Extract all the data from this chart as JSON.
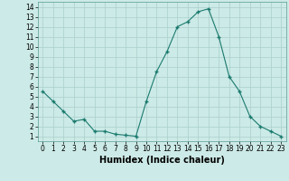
{
  "x": [
    0,
    1,
    2,
    3,
    4,
    5,
    6,
    7,
    8,
    9,
    10,
    11,
    12,
    13,
    14,
    15,
    16,
    17,
    18,
    19,
    20,
    21,
    22,
    23
  ],
  "y": [
    5.5,
    4.5,
    3.5,
    2.5,
    2.7,
    1.5,
    1.5,
    1.2,
    1.1,
    1.0,
    4.5,
    7.5,
    9.5,
    12.0,
    12.5,
    13.5,
    13.8,
    11.0,
    7.0,
    5.5,
    3.0,
    2.0,
    1.5,
    1.0
  ],
  "line_color": "#1a7a6e",
  "marker": "+",
  "marker_size": 3.5,
  "bg_color": "#cceae7",
  "grid_color": "#aacfcc",
  "xlabel": "Humidex (Indice chaleur)",
  "xlabel_fontsize": 7,
  "tick_fontsize": 5.5,
  "ylim": [
    0.5,
    14.5
  ],
  "xlim": [
    -0.5,
    23.5
  ],
  "yticks": [
    1,
    2,
    3,
    4,
    5,
    6,
    7,
    8,
    9,
    10,
    11,
    12,
    13,
    14
  ],
  "xticks": [
    0,
    1,
    2,
    3,
    4,
    5,
    6,
    7,
    8,
    9,
    10,
    11,
    12,
    13,
    14,
    15,
    16,
    17,
    18,
    19,
    20,
    21,
    22,
    23
  ]
}
